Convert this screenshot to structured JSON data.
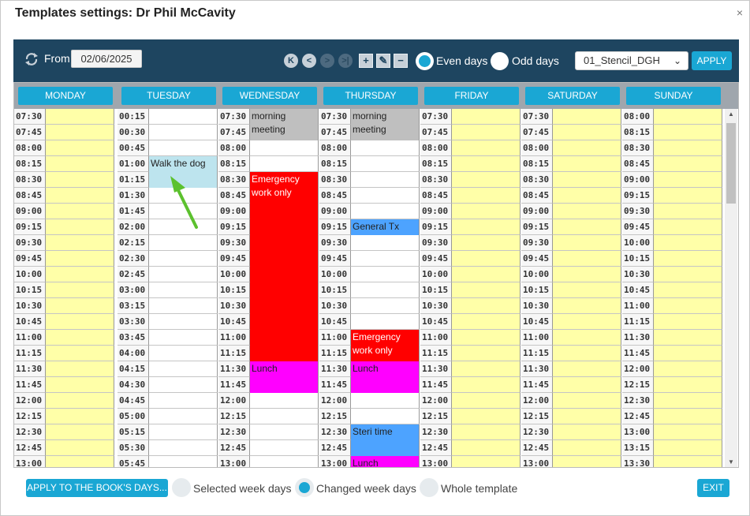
{
  "window": {
    "title": "Templates settings: Dr Phil McCavity",
    "close_glyph": "×"
  },
  "toolbar": {
    "from_label": "From",
    "date_value": "02/06/2025",
    "even_days_label": "Even days",
    "odd_days_label": "Odd days",
    "even_selected": true,
    "stencil_value": "01_Stencil_DGH",
    "apply_label": "APPLY",
    "nav_first": "K",
    "nav_prev": "<",
    "nav_next": ">",
    "nav_last": ">|",
    "add_glyph": "+",
    "edit_glyph": "✎",
    "remove_glyph": "−"
  },
  "days": [
    {
      "name": "MONDAY",
      "start": "07:30",
      "bg": "#ffffa8"
    },
    {
      "name": "TUESDAY",
      "start": "00:15",
      "bg": "#ffffff"
    },
    {
      "name": "WEDNESDAY",
      "start": "07:30",
      "bg": "#ffffff"
    },
    {
      "name": "THURSDAY",
      "start": "07:30",
      "bg": "#ffffff"
    },
    {
      "name": "FRIDAY",
      "start": "07:30",
      "bg": "#ffffa8"
    },
    {
      "name": "SATURDAY",
      "start": "07:30",
      "bg": "#ffffa8"
    },
    {
      "name": "SUNDAY",
      "start": "08:00",
      "bg": "#ffffa8"
    }
  ],
  "appointments": [
    {
      "day": 1,
      "start_slot": 3,
      "slots": 2,
      "label": "Walk the dog",
      "color": "#bde4ee",
      "text_color": "#222"
    },
    {
      "day": 2,
      "start_slot": 0,
      "slots": 2,
      "label": "morning meeting",
      "color": "#bfbfbf",
      "text_color": "#222"
    },
    {
      "day": 2,
      "start_slot": 4,
      "slots": 12,
      "label": "Emergency work only",
      "color": "#ff0000",
      "text_color": "#ffffff"
    },
    {
      "day": 2,
      "start_slot": 16,
      "slots": 2,
      "label": "Lunch",
      "color": "#ff00ff",
      "text_color": "#222"
    },
    {
      "day": 3,
      "start_slot": 0,
      "slots": 2,
      "label": "morning meeting",
      "color": "#bfbfbf",
      "text_color": "#222"
    },
    {
      "day": 3,
      "start_slot": 7,
      "slots": 1,
      "label": "General Tx",
      "color": "#4da3ff",
      "text_color": "#222"
    },
    {
      "day": 3,
      "start_slot": 14,
      "slots": 2,
      "label": "Emergency work only",
      "color": "#ff0000",
      "text_color": "#ffffff"
    },
    {
      "day": 3,
      "start_slot": 16,
      "slots": 2,
      "label": "Lunch",
      "color": "#ff00ff",
      "text_color": "#222"
    },
    {
      "day": 3,
      "start_slot": 20,
      "slots": 2,
      "label": "Steri time",
      "color": "#4da3ff",
      "text_color": "#222"
    },
    {
      "day": 3,
      "start_slot": 22,
      "slots": 1,
      "label": "Lunch",
      "color": "#ff00ff",
      "text_color": "#222"
    }
  ],
  "visible_slots": 23,
  "bottom": {
    "apply_books_label": "APPLY TO THE BOOK'S DAYS...",
    "selected_week_days": "Selected week days",
    "changed_week_days": "Changed week days",
    "whole_template": "Whole template",
    "selected_option": "changed",
    "exit_label": "EXIT"
  },
  "colors": {
    "accent": "#1aa7d4",
    "toolbar": "#1e4560",
    "weekend_bg": "#ffffa8",
    "arrow": "#5cc12e"
  },
  "icons": [
    "refresh-icon",
    "first-icon",
    "prev-icon",
    "next-icon",
    "last-icon",
    "add-icon",
    "edit-icon",
    "remove-icon",
    "chevron-down-icon",
    "close-icon",
    "arrow-pointer-icon"
  ]
}
